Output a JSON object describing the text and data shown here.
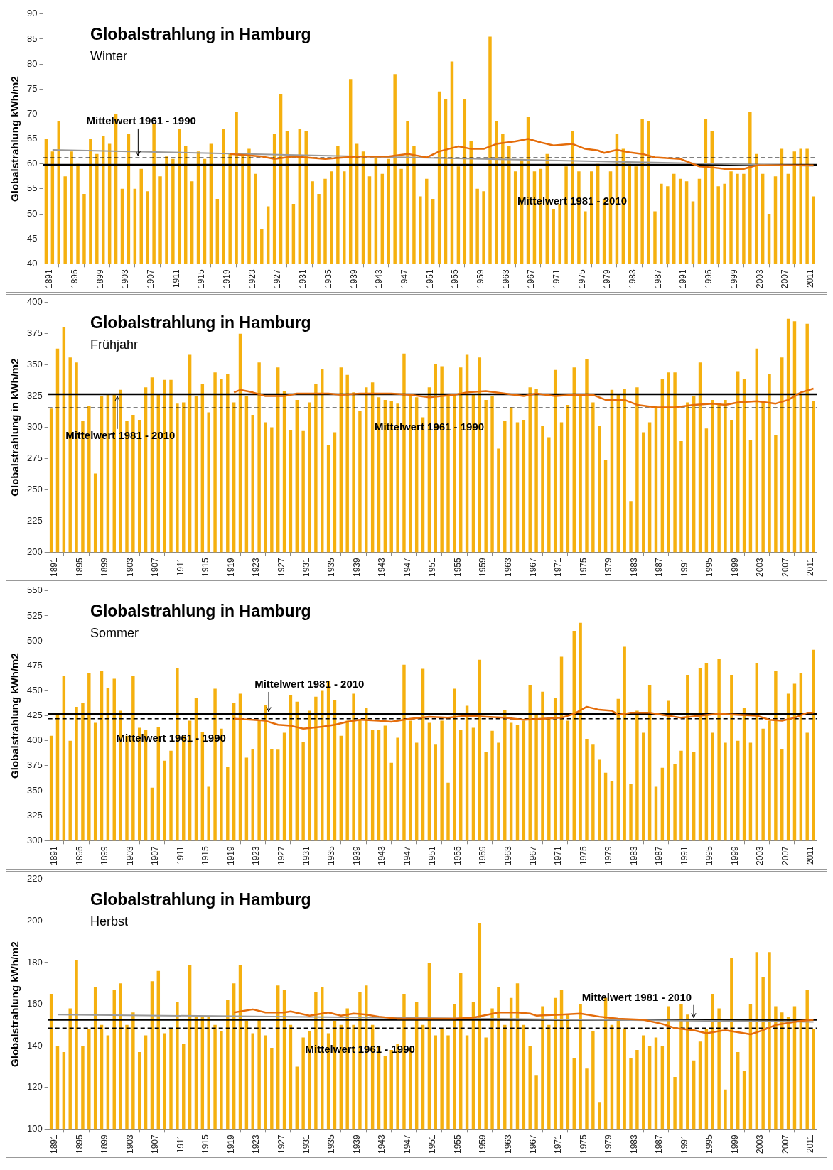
{
  "chart_data": [
    {
      "type": "bar",
      "title": "Globalstrahlung in Hamburg",
      "subtitle": "Winter",
      "ylabel": "Globalstrahlung kWh/m2",
      "x": [
        1891,
        1892,
        1893,
        1894,
        1895,
        1896,
        1897,
        1898,
        1899,
        1900,
        1901,
        1902,
        1903,
        1904,
        1905,
        1906,
        1907,
        1908,
        1909,
        1910,
        1911,
        1912,
        1913,
        1914,
        1915,
        1916,
        1917,
        1918,
        1919,
        1920,
        1921,
        1922,
        1923,
        1924,
        1925,
        1926,
        1927,
        1928,
        1929,
        1930,
        1931,
        1932,
        1933,
        1934,
        1935,
        1936,
        1937,
        1938,
        1939,
        1940,
        1941,
        1942,
        1943,
        1944,
        1945,
        1946,
        1947,
        1948,
        1949,
        1950,
        1951,
        1952,
        1953,
        1954,
        1955,
        1956,
        1957,
        1958,
        1959,
        1960,
        1961,
        1962,
        1963,
        1964,
        1965,
        1966,
        1967,
        1968,
        1969,
        1970,
        1971,
        1972,
        1973,
        1974,
        1975,
        1976,
        1977,
        1978,
        1979,
        1980,
        1981,
        1982,
        1983,
        1984,
        1985,
        1986,
        1987,
        1988,
        1989,
        1990,
        1991,
        1992,
        1993,
        1994,
        1995,
        1996,
        1997,
        1998,
        1999,
        2000,
        2001,
        2002,
        2003,
        2004,
        2005,
        2006,
        2007,
        2008,
        2009,
        2010,
        2011,
        2012
      ],
      "series": [
        {
          "color": "#f5b00f",
          "values": [
            65,
            62.5,
            68.5,
            57.5,
            62.5,
            60,
            54,
            65,
            62,
            65.5,
            64,
            70,
            55,
            66,
            55,
            59,
            54.5,
            68,
            57.5,
            61.5,
            61,
            67,
            63.5,
            56.5,
            62.5,
            61,
            64,
            53,
            67,
            62,
            70.5,
            62,
            63,
            58,
            47,
            51.5,
            66,
            74,
            66.5,
            52,
            67,
            66.5,
            56.5,
            54,
            57,
            58.5,
            63.5,
            58.5,
            77,
            64,
            62.5,
            57.5,
            61.5,
            58,
            61,
            78,
            59,
            68.5,
            63.5,
            53.5,
            57,
            53,
            74.5,
            73,
            80.5,
            59.5,
            73,
            64.5,
            55,
            54.5,
            85.5,
            68.5,
            66,
            63.5,
            58.5,
            61,
            69.5,
            58.5,
            59,
            62,
            51,
            52,
            59.5,
            66.5,
            58.5,
            50.5,
            58.5,
            60,
            53,
            58.5,
            66,
            63,
            60,
            59.5,
            69,
            68.5,
            50.5,
            56,
            55.5,
            58,
            57,
            56.5,
            52.5,
            57,
            69,
            66.5,
            55.5,
            56,
            58.5,
            58,
            58,
            70.5,
            62,
            58,
            50,
            57.5,
            63,
            58,
            62.5,
            63,
            63,
            53.5
          ]
        },
        {
          "type": "line",
          "color": "#e46c0a",
          "x": [
            1920,
            1925,
            1927,
            1930,
            1935,
            1940,
            1945,
            1948,
            1951,
            1953,
            1956,
            1958,
            1960,
            1962,
            1965,
            1967,
            1969,
            1971,
            1974,
            1976,
            1978,
            1979,
            1981,
            1983,
            1985,
            1987,
            1991,
            1994,
            1996,
            1998,
            2001,
            2003,
            2012
          ],
          "values": [
            62,
            61.5,
            61,
            61.5,
            61,
            61.5,
            61.5,
            62,
            61.3,
            62.5,
            63.5,
            63,
            63,
            64,
            64.5,
            65,
            64.3,
            63.7,
            64,
            63,
            62.7,
            62.2,
            62.8,
            62.3,
            62,
            61.3,
            61,
            59.5,
            59.3,
            59,
            59,
            59.7,
            59.7
          ]
        },
        {
          "type": "line",
          "color": "#999999",
          "x": [
            1892,
            2012
          ],
          "values": [
            62.8,
            59.6
          ]
        }
      ],
      "xlim": [
        1890.5,
        2012.5
      ],
      "xticks": [
        1891,
        1895,
        1899,
        1903,
        1907,
        1911,
        1915,
        1919,
        1923,
        1927,
        1931,
        1935,
        1939,
        1943,
        1947,
        1951,
        1955,
        1959,
        1963,
        1967,
        1971,
        1975,
        1979,
        1983,
        1987,
        1991,
        1995,
        1999,
        2003,
        2007,
        2011
      ],
      "ylim": [
        40,
        90
      ],
      "yticks": [
        40,
        45,
        50,
        55,
        60,
        65,
        70,
        75,
        80,
        85,
        90
      ],
      "ref_lines": [
        {
          "axis": "y",
          "value": 59.8,
          "label": "Mittelwert 1981 - 2010",
          "color": "#000000",
          "line_style": "solid"
        },
        {
          "axis": "y",
          "value": 61.2,
          "label": "Mittelwert 1961 - 1990",
          "color": "#000000",
          "line_style": "dashed"
        }
      ],
      "grid": false,
      "legend": false,
      "marker": "none"
    },
    {
      "type": "bar",
      "title": "Globalstrahlung in Hamburg",
      "subtitle": "Frühjahr",
      "ylabel": "Globalstrahlung in kWh/m2",
      "x": [
        1891,
        1892,
        1893,
        1894,
        1895,
        1896,
        1897,
        1898,
        1899,
        1900,
        1901,
        1902,
        1903,
        1904,
        1905,
        1906,
        1907,
        1908,
        1909,
        1910,
        1911,
        1912,
        1913,
        1914,
        1915,
        1916,
        1917,
        1918,
        1919,
        1920,
        1921,
        1922,
        1923,
        1924,
        1925,
        1926,
        1927,
        1928,
        1929,
        1930,
        1931,
        1932,
        1933,
        1934,
        1935,
        1936,
        1937,
        1938,
        1939,
        1940,
        1941,
        1942,
        1943,
        1944,
        1945,
        1946,
        1947,
        1948,
        1949,
        1950,
        1951,
        1952,
        1953,
        1954,
        1955,
        1956,
        1957,
        1958,
        1959,
        1960,
        1961,
        1962,
        1963,
        1964,
        1965,
        1966,
        1967,
        1968,
        1969,
        1970,
        1971,
        1972,
        1973,
        1974,
        1975,
        1976,
        1977,
        1978,
        1979,
        1980,
        1981,
        1982,
        1983,
        1984,
        1985,
        1986,
        1987,
        1988,
        1989,
        1990,
        1991,
        1992,
        1993,
        1994,
        1995,
        1996,
        1997,
        1998,
        1999,
        2000,
        2001,
        2002,
        2003,
        2004,
        2005,
        2006,
        2007,
        2008,
        2009,
        2010,
        2011,
        2012
      ],
      "series": [
        {
          "color": "#f5b00f",
          "values": [
            315,
            363,
            380,
            356,
            352,
            305,
            317,
            263,
            325,
            326,
            326,
            330,
            305,
            310,
            306,
            332,
            340,
            327,
            338,
            338,
            319,
            320,
            358,
            325,
            335,
            312,
            344,
            339,
            343,
            320,
            375,
            325,
            310,
            352,
            304,
            300,
            348,
            329,
            298,
            322,
            297,
            320,
            335,
            347,
            286,
            296,
            348,
            342,
            328,
            313,
            332,
            336,
            324,
            322,
            321,
            319,
            359,
            326,
            324,
            308,
            332,
            351,
            349,
            326,
            327,
            348,
            358,
            326,
            356,
            322,
            325,
            283,
            305,
            316,
            304,
            306,
            332,
            331,
            301,
            292,
            346,
            304,
            318,
            348,
            327,
            355,
            320,
            301,
            274,
            330,
            326,
            331,
            241,
            332,
            296,
            304,
            317,
            339,
            344,
            344,
            289,
            320,
            325,
            352,
            299,
            322,
            319,
            322,
            306,
            345,
            339,
            290,
            363,
            320,
            343,
            294,
            356,
            387,
            385,
            327,
            383,
            321
          ]
        },
        {
          "type": "line",
          "color": "#e46c0a",
          "x": [
            1920,
            1921,
            1923,
            1925,
            1928,
            1930,
            1935,
            1937,
            1940,
            1945,
            1948,
            1951,
            1955,
            1957,
            1960,
            1963,
            1966,
            1968,
            1971,
            1974,
            1977,
            1979,
            1982,
            1984,
            1987,
            1990,
            1993,
            1996,
            1998,
            2000,
            2003,
            2006,
            2008,
            2010,
            2012
          ],
          "values": [
            328,
            330,
            328,
            325,
            325,
            327,
            327,
            326,
            327,
            327,
            326,
            324,
            326,
            328,
            329,
            327,
            325,
            327,
            325,
            326,
            326,
            322,
            322,
            318,
            316,
            316,
            318,
            319,
            318,
            320,
            321,
            319,
            322,
            328,
            331
          ]
        }
      ],
      "xlim": [
        1890.5,
        2012.5
      ],
      "xticks": [
        1891,
        1895,
        1899,
        1903,
        1907,
        1911,
        1915,
        1919,
        1923,
        1927,
        1931,
        1935,
        1939,
        1943,
        1947,
        1951,
        1955,
        1959,
        1963,
        1967,
        1971,
        1975,
        1979,
        1983,
        1987,
        1991,
        1995,
        1999,
        2003,
        2007,
        2011
      ],
      "ylim": [
        200,
        400
      ],
      "yticks": [
        200,
        225,
        250,
        275,
        300,
        325,
        350,
        375,
        400
      ],
      "ref_lines": [
        {
          "axis": "y",
          "value": 326.5,
          "label": "Mittelwert 1981 - 2010",
          "color": "#000000",
          "line_style": "solid"
        },
        {
          "axis": "y",
          "value": 315.5,
          "label": "Mittelwert 1961 - 1990",
          "color": "#000000",
          "line_style": "dashed"
        }
      ],
      "grid": false,
      "legend": false,
      "marker": "none"
    },
    {
      "type": "bar",
      "title": "Globalstrahlung in Hamburg",
      "subtitle": "Sommer",
      "ylabel": "Globalstrahlung kWh/m2",
      "x": [
        1891,
        1892,
        1893,
        1894,
        1895,
        1896,
        1897,
        1898,
        1899,
        1900,
        1901,
        1902,
        1903,
        1904,
        1905,
        1906,
        1907,
        1908,
        1909,
        1910,
        1911,
        1912,
        1913,
        1914,
        1915,
        1916,
        1917,
        1918,
        1919,
        1920,
        1921,
        1922,
        1923,
        1924,
        1925,
        1926,
        1927,
        1928,
        1929,
        1930,
        1931,
        1932,
        1933,
        1934,
        1935,
        1936,
        1937,
        1938,
        1939,
        1940,
        1941,
        1942,
        1943,
        1944,
        1945,
        1946,
        1947,
        1948,
        1949,
        1950,
        1951,
        1952,
        1953,
        1954,
        1955,
        1956,
        1957,
        1958,
        1959,
        1960,
        1961,
        1962,
        1963,
        1964,
        1965,
        1966,
        1967,
        1968,
        1969,
        1970,
        1971,
        1972,
        1973,
        1974,
        1975,
        1976,
        1977,
        1978,
        1979,
        1980,
        1981,
        1982,
        1983,
        1984,
        1985,
        1986,
        1987,
        1988,
        1989,
        1990,
        1991,
        1992,
        1993,
        1994,
        1995,
        1996,
        1997,
        1998,
        1999,
        2000,
        2001,
        2002,
        2003,
        2004,
        2005,
        2006,
        2007,
        2008,
        2009,
        2010,
        2011,
        2012
      ],
      "series": [
        {
          "color": "#f5b00f",
          "values": [
            405,
            428,
            465,
            400,
            434,
            438,
            468,
            418,
            470,
            453,
            462,
            430,
            405,
            465,
            413,
            411,
            353,
            414,
            380,
            390,
            473,
            405,
            420,
            443,
            409,
            354,
            452,
            412,
            374,
            438,
            447,
            383,
            392,
            420,
            436,
            392,
            391,
            408,
            446,
            439,
            399,
            430,
            444,
            450,
            460,
            441,
            405,
            420,
            447,
            421,
            433,
            411,
            411,
            415,
            378,
            403,
            476,
            420,
            398,
            472,
            418,
            396,
            420,
            358,
            452,
            411,
            435,
            413,
            481,
            389,
            410,
            398,
            431,
            418,
            416,
            420,
            456,
            427,
            449,
            424,
            443,
            484,
            420,
            510,
            518,
            402,
            396,
            381,
            368,
            360,
            442,
            494,
            357,
            430,
            408,
            456,
            354,
            373,
            440,
            377,
            390,
            466,
            389,
            473,
            478,
            408,
            482,
            398,
            466,
            400,
            433,
            398,
            478,
            412,
            420,
            470,
            392,
            447,
            457,
            468,
            408,
            491
          ]
        },
        {
          "type": "line",
          "color": "#e46c0a",
          "x": [
            1920,
            1923,
            1925,
            1927,
            1929,
            1931,
            1934,
            1936,
            1938,
            1940,
            1943,
            1945,
            1948,
            1951,
            1954,
            1957,
            1960,
            1963,
            1966,
            1969,
            1972,
            1974,
            1976,
            1978,
            1980,
            1981,
            1983,
            1986,
            1988,
            1991,
            1994,
            1997,
            2000,
            2003,
            2005,
            2007,
            2009,
            2011,
            2012
          ],
          "values": [
            422,
            421,
            420,
            416,
            415,
            412,
            414,
            416,
            419,
            421,
            420,
            419,
            422,
            424,
            423,
            425,
            424,
            423,
            421,
            422,
            423,
            427,
            434,
            431,
            430,
            426,
            428,
            428,
            426,
            423,
            425,
            427,
            426,
            425,
            421,
            420,
            423,
            428,
            428
          ]
        }
      ],
      "xlim": [
        1890.5,
        2012.5
      ],
      "xticks": [
        1891,
        1895,
        1899,
        1903,
        1907,
        1911,
        1915,
        1919,
        1923,
        1927,
        1931,
        1935,
        1939,
        1943,
        1947,
        1951,
        1955,
        1959,
        1963,
        1967,
        1971,
        1975,
        1979,
        1983,
        1987,
        1991,
        1995,
        1999,
        2003,
        2007,
        2011
      ],
      "ylim": [
        300,
        550
      ],
      "yticks": [
        300,
        325,
        350,
        375,
        400,
        425,
        450,
        475,
        500,
        525,
        550
      ],
      "ref_lines": [
        {
          "axis": "y",
          "value": 427,
          "label": "Mittelwert 1981 - 2010",
          "color": "#000000",
          "line_style": "solid"
        },
        {
          "axis": "y",
          "value": 422,
          "label": "Mittelwert 1961 - 1990",
          "color": "#000000",
          "line_style": "dashed"
        }
      ],
      "grid": false,
      "legend": false,
      "marker": "none"
    },
    {
      "type": "bar",
      "title": "Globalstrahlung in Hamburg",
      "subtitle": "Herbst",
      "ylabel": "Globalstrahlung kWh/m2",
      "x": [
        1891,
        1892,
        1893,
        1894,
        1895,
        1896,
        1897,
        1898,
        1899,
        1900,
        1901,
        1902,
        1903,
        1904,
        1905,
        1906,
        1907,
        1908,
        1909,
        1910,
        1911,
        1912,
        1913,
        1914,
        1915,
        1916,
        1917,
        1918,
        1919,
        1920,
        1921,
        1922,
        1923,
        1924,
        1925,
        1926,
        1927,
        1928,
        1929,
        1930,
        1931,
        1932,
        1933,
        1934,
        1935,
        1936,
        1937,
        1938,
        1939,
        1940,
        1941,
        1942,
        1943,
        1944,
        1945,
        1946,
        1947,
        1948,
        1949,
        1950,
        1951,
        1952,
        1953,
        1954,
        1955,
        1956,
        1957,
        1958,
        1959,
        1960,
        1961,
        1962,
        1963,
        1964,
        1965,
        1966,
        1967,
        1968,
        1969,
        1970,
        1971,
        1972,
        1973,
        1974,
        1975,
        1976,
        1977,
        1978,
        1979,
        1980,
        1981,
        1982,
        1983,
        1984,
        1985,
        1986,
        1987,
        1988,
        1989,
        1990,
        1991,
        1992,
        1993,
        1994,
        1995,
        1996,
        1997,
        1998,
        1999,
        2000,
        2001,
        2002,
        2003,
        2004,
        2005,
        2006,
        2007,
        2008,
        2009,
        2010,
        2011,
        2012
      ],
      "series": [
        {
          "color": "#f5b00f",
          "values": [
            165,
            140,
            137,
            158,
            181,
            140,
            148,
            168,
            150,
            145,
            167,
            170,
            150,
            156,
            137,
            145,
            171,
            176,
            146,
            148,
            161,
            141,
            179,
            154,
            154,
            154,
            150,
            147,
            162,
            170,
            179,
            152,
            146,
            153,
            145,
            139,
            169,
            167,
            150,
            130,
            144,
            147,
            166,
            168,
            146,
            152,
            150,
            158,
            150,
            166,
            169,
            150,
            140,
            135,
            138,
            141,
            165,
            139,
            161,
            150,
            180,
            145,
            148,
            145,
            160,
            175,
            145,
            161,
            199,
            144,
            158,
            168,
            150,
            163,
            170,
            150,
            140,
            126,
            159,
            150,
            163,
            167,
            155,
            134,
            160,
            129,
            147,
            113,
            163,
            150,
            152,
            148,
            134,
            138,
            145,
            140,
            144,
            140,
            159,
            125,
            160,
            155,
            133,
            142,
            148,
            165,
            158,
            119,
            182,
            137,
            128,
            160,
            185,
            173,
            185,
            159,
            156,
            154,
            159,
            152,
            167,
            148
          ]
        },
        {
          "type": "line",
          "color": "#e46c0a",
          "x": [
            1920,
            1923,
            1925,
            1928,
            1929,
            1932,
            1935,
            1937,
            1939,
            1941,
            1943,
            1946,
            1950,
            1955,
            1958,
            1962,
            1965,
            1967,
            1968,
            1972,
            1975,
            1978,
            1981,
            1985,
            1988,
            1990,
            1993,
            1995,
            1998,
            2000,
            2002,
            2004,
            2006,
            2008,
            2010,
            2012
          ],
          "values": [
            156,
            157.5,
            156,
            156,
            156.5,
            154.5,
            156,
            154.5,
            155.5,
            155,
            154,
            153,
            153,
            153,
            153.5,
            156,
            156,
            155.5,
            154.5,
            155,
            155.5,
            154,
            153,
            152.5,
            150.5,
            148.5,
            147.5,
            146,
            147.5,
            146.5,
            145.5,
            147.5,
            150,
            151,
            152,
            152.5
          ]
        },
        {
          "type": "line",
          "color": "#999999",
          "x": [
            1892,
            2012
          ],
          "values": [
            155,
            151.5
          ]
        }
      ],
      "xlim": [
        1890.5,
        2012.5
      ],
      "xticks": [
        1891,
        1895,
        1899,
        1903,
        1907,
        1911,
        1915,
        1919,
        1923,
        1927,
        1931,
        1935,
        1939,
        1943,
        1947,
        1951,
        1955,
        1959,
        1963,
        1967,
        1971,
        1975,
        1979,
        1983,
        1987,
        1991,
        1995,
        1999,
        2003,
        2007,
        2011
      ],
      "ylim": [
        100,
        220
      ],
      "yticks": [
        100,
        120,
        140,
        160,
        180,
        200,
        220
      ],
      "ref_lines": [
        {
          "axis": "y",
          "value": 152.5,
          "label": "Mittelwert 1981 - 2010",
          "color": "#000000",
          "line_style": "solid"
        },
        {
          "axis": "y",
          "value": 148.5,
          "label": "Mittelwert 1961 - 1990",
          "color": "#000000",
          "line_style": "dashed"
        }
      ],
      "grid": false,
      "legend": false,
      "marker": "none"
    }
  ]
}
